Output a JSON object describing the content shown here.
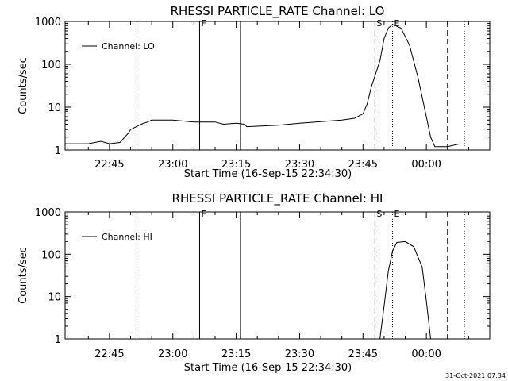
{
  "chart_data": [
    {
      "type": "line",
      "title": "RHESSI PARTICLE_RATE Channel: LO",
      "xlabel": "Start Time (16-Sep-15 22:34:30)",
      "ylabel": "Counts/sec",
      "yscale": "log",
      "ylim": [
        1,
        1000
      ],
      "xlim": [
        "22:34:30",
        "00:15:00"
      ],
      "x_ticks": [
        "22:45",
        "23:00",
        "23:15",
        "23:30",
        "23:45",
        "00:00"
      ],
      "y_ticks": [
        "1",
        "10",
        "100",
        "1000"
      ],
      "legend": {
        "entry": "Channel: LO",
        "placement": "top-left"
      },
      "grid": false,
      "series": [
        {
          "name": "Channel: LO",
          "x": [
            "22:34:30",
            "22:38:00",
            "22:40:00",
            "22:43:00",
            "22:45:00",
            "22:47:30",
            "22:49:30",
            "22:50:00",
            "22:52:30",
            "22:54:00",
            "22:55:00",
            "23:00:00",
            "23:05:00",
            "23:10:00",
            "23:12:00",
            "23:15:00",
            "23:17:00",
            "23:17:30",
            "23:25:00",
            "23:30:00",
            "23:35:00",
            "23:40:00",
            "23:43:00",
            "23:45:00",
            "23:46:00",
            "23:47:00",
            "23:49:00",
            "23:50:00",
            "23:51:00",
            "23:52:00",
            "23:54:00",
            "23:56:00",
            "23:58:00",
            "24:00:00",
            "24:01:00",
            "24:02:00",
            "24:05:00",
            "24:08:00"
          ],
          "y": [
            1.4,
            1.4,
            1.4,
            1.6,
            1.4,
            1.5,
            2.5,
            3,
            4,
            4.5,
            5,
            5,
            4.5,
            4.5,
            4,
            4.2,
            4,
            3.5,
            3.8,
            4.2,
            4.6,
            5,
            5.5,
            7,
            12,
            30,
            120,
            400,
            700,
            850,
            700,
            280,
            50,
            6,
            2,
            1.2,
            1.2,
            1.4
          ]
        }
      ],
      "markers": [
        {
          "label": "",
          "x": "22:51:30",
          "style": "dotted"
        },
        {
          "label": "F",
          "x": "23:06:20",
          "style": "solid"
        },
        {
          "label": "",
          "x": "23:16:00",
          "style": "solid"
        },
        {
          "label": "S",
          "x": "23:47:50",
          "style": "dashed"
        },
        {
          "label": "E",
          "x": "23:52:00",
          "style": "dotted"
        },
        {
          "label": "",
          "x": "00:05:00",
          "style": "dashed"
        },
        {
          "label": "",
          "x": "00:09:00",
          "style": "dotted"
        }
      ]
    },
    {
      "type": "line",
      "title": "RHESSI PARTICLE_RATE Channel: HI",
      "xlabel": "Start Time (16-Sep-15 22:34:30)",
      "ylabel": "Counts/sec",
      "yscale": "log",
      "ylim": [
        1,
        1000
      ],
      "xlim": [
        "22:34:30",
        "00:15:00"
      ],
      "x_ticks": [
        "22:45",
        "23:00",
        "23:15",
        "23:30",
        "23:45",
        "00:00"
      ],
      "y_ticks": [
        "1",
        "10",
        "100",
        "1000"
      ],
      "legend": {
        "entry": "Channel: HI",
        "placement": "top-left"
      },
      "grid": false,
      "series": [
        {
          "name": "Channel: HI",
          "x": [
            "23:49:00",
            "23:50:00",
            "23:51:00",
            "23:52:00",
            "23:53:00",
            "23:55:00",
            "23:57:00",
            "23:59:00",
            "24:00:00",
            "24:01:00"
          ],
          "y": [
            1,
            6,
            40,
            120,
            190,
            200,
            150,
            50,
            8,
            1
          ]
        }
      ],
      "markers": [
        {
          "label": "",
          "x": "22:51:30",
          "style": "dotted"
        },
        {
          "label": "F",
          "x": "23:06:20",
          "style": "solid"
        },
        {
          "label": "",
          "x": "23:16:00",
          "style": "solid"
        },
        {
          "label": "S",
          "x": "23:47:50",
          "style": "dashed"
        },
        {
          "label": "E",
          "x": "23:52:00",
          "style": "dotted"
        },
        {
          "label": "",
          "x": "00:05:00",
          "style": "dashed"
        },
        {
          "label": "",
          "x": "00:09:00",
          "style": "dotted"
        }
      ]
    }
  ],
  "footer": {
    "timestamp": "31-Oct-2021 07:34"
  }
}
